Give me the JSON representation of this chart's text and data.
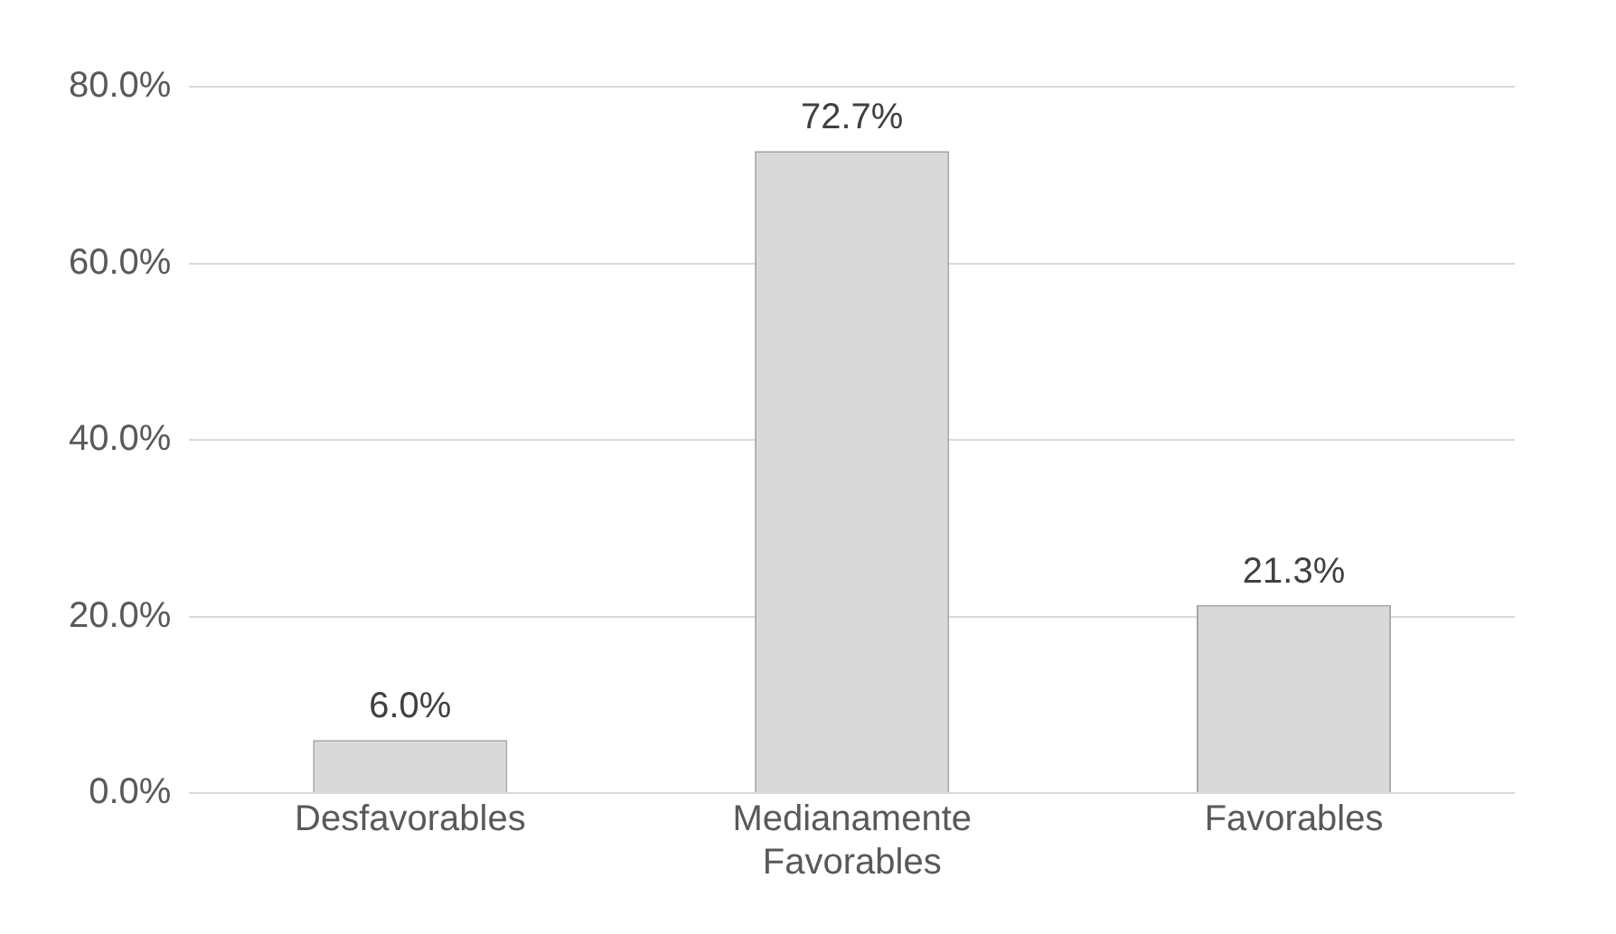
{
  "chart_data": {
    "type": "bar",
    "categories": [
      "Desfavorables",
      "Medianamente Favorables",
      "Favorables"
    ],
    "values": [
      6.0,
      72.7,
      21.3
    ],
    "value_labels": [
      "6.0%",
      "72.7%",
      "21.3%"
    ],
    "color": "#d9d9d9",
    "ylim": [
      0,
      80
    ],
    "yticks": [
      {
        "value": 0,
        "label": "0.0%"
      },
      {
        "value": 20,
        "label": "20.0%"
      },
      {
        "value": 40,
        "label": "40.0%"
      },
      {
        "value": 60,
        "label": "60.0%"
      },
      {
        "value": 80,
        "label": "80.0%"
      }
    ],
    "grid": "y"
  }
}
